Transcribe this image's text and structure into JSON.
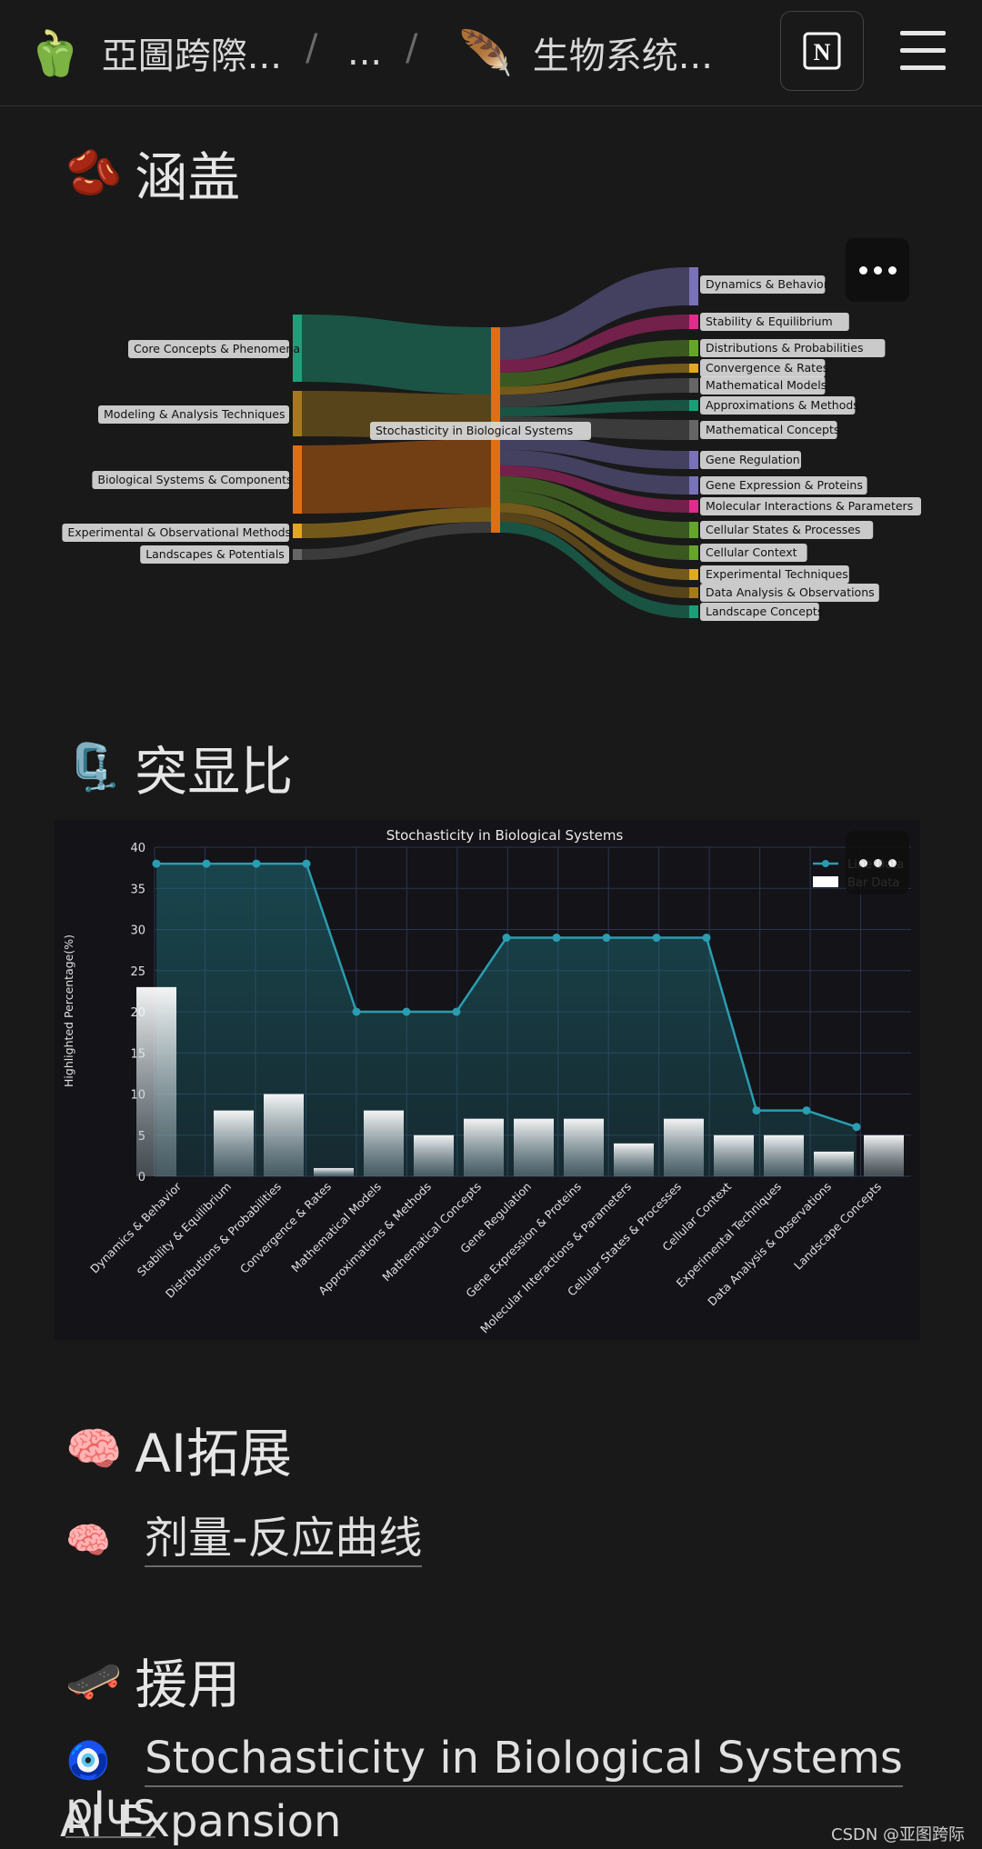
{
  "header": {
    "crumb1_emoji": "🫑",
    "crumb1": "亞圖跨際...",
    "crumb2": "...",
    "crumb3_emoji": "🪶",
    "crumb3": "生物系统...",
    "sep": "/",
    "notion_letter": "N"
  },
  "sections": {
    "coverage": {
      "emoji": "🫘",
      "title": "涵盖"
    },
    "highlight": {
      "emoji": "🗜️",
      "title": "突显比"
    },
    "ai": {
      "emoji": "🧠",
      "title": "AI拓展"
    },
    "ai_link": {
      "emoji": "🧠",
      "text": "剂量-反应曲线"
    },
    "cite": {
      "emoji": "🛹",
      "title": "援用"
    },
    "cite_link": {
      "emoji": "🧿",
      "text1": "Stochasticity in Biological Systems plus",
      "text2": "AI Expansion"
    }
  },
  "sankey": {
    "center": "Stochasticity in Biological Systems",
    "left_nodes": [
      {
        "label": "Core Concepts & Phenomena",
        "color": "#1f9e7a"
      },
      {
        "label": "Modeling & Analysis Techniques",
        "color": "#a57a1f"
      },
      {
        "label": "Biological Systems & Components",
        "color": "#e06e12"
      },
      {
        "label": "Experimental & Observational Methods",
        "color": "#e1a81f"
      },
      {
        "label": "Landscapes & Potentials",
        "color": "#666666"
      }
    ],
    "right_nodes": [
      {
        "label": "Dynamics & Behavior",
        "color": "#7a72b8"
      },
      {
        "label": "Stability & Equilibrium",
        "color": "#e22b8a"
      },
      {
        "label": "Distributions & Probabilities",
        "color": "#65a62a"
      },
      {
        "label": "Convergence & Rates",
        "color": "#e2a81f"
      },
      {
        "label": "Mathematical Models",
        "color": "#666666"
      },
      {
        "label": "Approximations & Methods",
        "color": "#1b9e77"
      },
      {
        "label": "Mathematical Concepts",
        "color": "#666666"
      },
      {
        "label": "Gene Regulation",
        "color": "#7a72b8"
      },
      {
        "label": "Gene Expression & Proteins",
        "color": "#7a72b8"
      },
      {
        "label": "Molecular Interactions & Parameters",
        "color": "#e22b8a"
      },
      {
        "label": "Cellular States & Processes",
        "color": "#65a62a"
      },
      {
        "label": "Cellular Context",
        "color": "#65a62a"
      },
      {
        "label": "Experimental Techniques",
        "color": "#e2a81f"
      },
      {
        "label": "Data Analysis & Observations",
        "color": "#a57a1f"
      },
      {
        "label": "Landscape Concepts",
        "color": "#1b9e77"
      }
    ]
  },
  "chart_data": {
    "type": "bar",
    "title": "Stochasticity in Biological Systems",
    "ylabel": "Highlighted Percentage(%)",
    "xlabel": "",
    "ylim": [
      0,
      40
    ],
    "yticks": [
      0,
      5,
      10,
      15,
      20,
      25,
      30,
      35,
      40
    ],
    "grid": true,
    "legend_position": "top-right",
    "categories": [
      "Dynamics & Behavior",
      "Stability & Equilibrium",
      "Distributions & Probabilities",
      "Convergence & Rates",
      "Mathematical Models",
      "Approximations & Methods",
      "Mathematical Concepts",
      "Gene Regulation",
      "Gene Expression & Proteins",
      "Molecular Interactions & Parameters",
      "Cellular States & Processes",
      "Cellular Context",
      "Experimental Techniques",
      "Data Analysis & Observations",
      "Landscape Concepts"
    ],
    "series": [
      {
        "name": "Line Data",
        "type": "line",
        "color": "#2a9db0",
        "values": [
          38,
          38,
          38,
          38,
          20,
          20,
          20,
          29,
          29,
          29,
          29,
          29,
          8,
          8,
          6
        ]
      },
      {
        "name": "Bar Data",
        "type": "bar",
        "color": "#ffffff",
        "values": [
          23,
          8,
          10,
          1,
          8,
          5,
          7,
          7,
          7,
          4,
          7,
          5,
          5,
          3,
          5
        ]
      }
    ]
  },
  "watermark": "CSDN @亚图跨际"
}
